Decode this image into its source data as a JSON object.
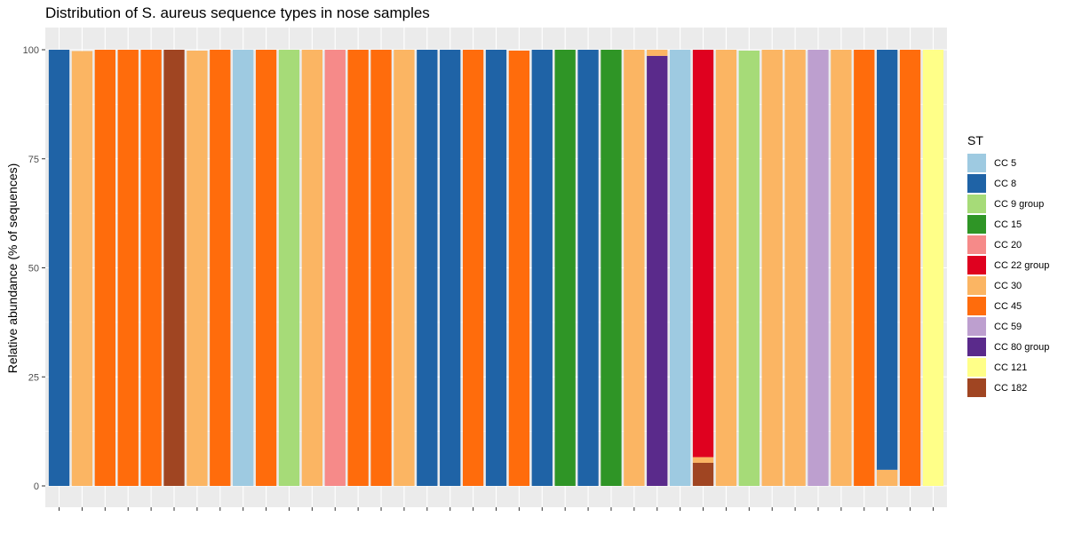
{
  "chart_data": {
    "type": "bar",
    "stacked": true,
    "title": "Distribution of S. aureus sequence types in nose samples",
    "xlabel": "",
    "ylabel": "Relative abundance (% of sequences)",
    "ylim": [
      0,
      100
    ],
    "yticks": [
      0,
      25,
      50,
      75,
      100
    ],
    "ytick_labels": [
      "0",
      "25",
      "50",
      "75",
      "100"
    ],
    "grid": true,
    "legend": {
      "title": "ST",
      "placement": "right"
    },
    "series": [
      {
        "name": "CC 5",
        "color": "#9ECAE1"
      },
      {
        "name": "CC 8",
        "color": "#1F63A6"
      },
      {
        "name": "CC 9 group",
        "color": "#A6DB78"
      },
      {
        "name": "CC 15",
        "color": "#2F9526"
      },
      {
        "name": "CC 20",
        "color": "#F68A89"
      },
      {
        "name": "CC 22 group",
        "color": "#DF011F"
      },
      {
        "name": "CC 30",
        "color": "#FBB563"
      },
      {
        "name": "CC 45",
        "color": "#FF6C0C"
      },
      {
        "name": "CC 59",
        "color": "#BD9FCF"
      },
      {
        "name": "CC 80 group",
        "color": "#5A2A8B"
      },
      {
        "name": "CC 121",
        "color": "#FFFF88"
      },
      {
        "name": "CC 182",
        "color": "#A04522"
      }
    ],
    "samples": [
      [
        [
          "CC 8",
          100
        ]
      ],
      [
        [
          "CC 30",
          99.7
        ]
      ],
      [
        [
          "CC 45",
          100
        ]
      ],
      [
        [
          "CC 45",
          100
        ]
      ],
      [
        [
          "CC 45",
          100
        ]
      ],
      [
        [
          "CC 182",
          100
        ]
      ],
      [
        [
          "CC 30",
          99.8
        ]
      ],
      [
        [
          "CC 45",
          100
        ]
      ],
      [
        [
          "CC 5",
          100
        ]
      ],
      [
        [
          "CC 45",
          100
        ]
      ],
      [
        [
          "CC 9 group",
          100
        ]
      ],
      [
        [
          "CC 30",
          100
        ]
      ],
      [
        [
          "CC 20",
          100
        ]
      ],
      [
        [
          "CC 45",
          100
        ]
      ],
      [
        [
          "CC 45",
          100
        ]
      ],
      [
        [
          "CC 30",
          100
        ]
      ],
      [
        [
          "CC 8",
          100
        ]
      ],
      [
        [
          "CC 8",
          100
        ]
      ],
      [
        [
          "CC 45",
          100
        ]
      ],
      [
        [
          "CC 8",
          100
        ]
      ],
      [
        [
          "CC 45",
          99.8
        ]
      ],
      [
        [
          "CC 8",
          100
        ]
      ],
      [
        [
          "CC 15",
          100
        ]
      ],
      [
        [
          "CC 8",
          100
        ]
      ],
      [
        [
          "CC 15",
          100
        ]
      ],
      [
        [
          "CC 30",
          100
        ]
      ],
      [
        [
          "CC 80 group",
          98.6
        ],
        [
          "CC 30",
          1.4
        ]
      ],
      [
        [
          "CC 5",
          100
        ]
      ],
      [
        [
          "CC 182",
          5.3
        ],
        [
          "CC 30",
          1.3
        ],
        [
          "CC 22 group",
          93.4
        ]
      ],
      [
        [
          "CC 30",
          100
        ]
      ],
      [
        [
          "CC 9 group",
          99.8
        ]
      ],
      [
        [
          "CC 30",
          100
        ]
      ],
      [
        [
          "CC 30",
          100
        ]
      ],
      [
        [
          "CC 59",
          100
        ]
      ],
      [
        [
          "CC 30",
          100
        ]
      ],
      [
        [
          "CC 45",
          100
        ]
      ],
      [
        [
          "CC 30",
          3.7
        ],
        [
          "CC 8",
          96.3
        ]
      ],
      [
        [
          "CC 45",
          100
        ]
      ],
      [
        [
          "CC 121",
          100
        ]
      ]
    ]
  }
}
